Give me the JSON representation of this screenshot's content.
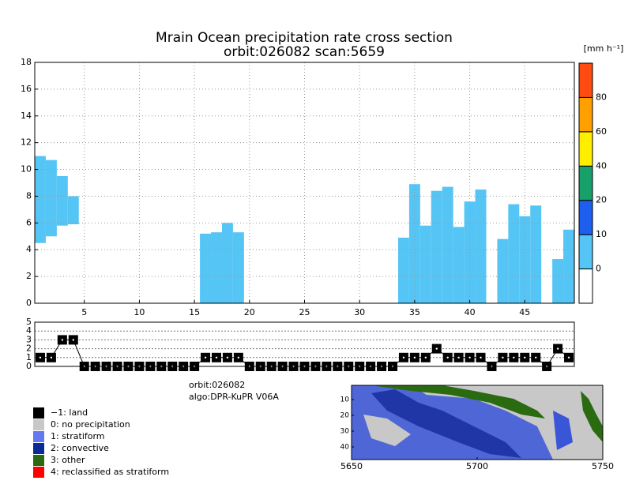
{
  "chart_data": [
    {
      "type": "cross_section",
      "title": "Mrain Ocean precipitation rate cross section",
      "subtitle": "orbit:026082    scan:5659",
      "x": [
        1,
        2,
        3,
        4,
        5,
        6,
        7,
        8,
        9,
        10,
        11,
        12,
        13,
        14,
        15,
        16,
        17,
        18,
        19,
        20,
        21,
        22,
        23,
        24,
        25,
        26,
        27,
        28,
        29,
        30,
        31,
        32,
        33,
        34,
        35,
        36,
        37,
        38,
        39,
        40,
        41,
        42,
        43,
        44,
        45,
        46,
        47,
        48,
        49
      ],
      "bottom": [
        4.5,
        5.0,
        5.8,
        5.9,
        null,
        null,
        null,
        null,
        null,
        null,
        null,
        null,
        null,
        null,
        null,
        0,
        0,
        0,
        0,
        null,
        null,
        null,
        null,
        null,
        null,
        null,
        null,
        null,
        null,
        null,
        null,
        null,
        null,
        0,
        0,
        0,
        0,
        0,
        0,
        0,
        0,
        null,
        0,
        0,
        0,
        0,
        null,
        0,
        0
      ],
      "top": [
        11.0,
        10.7,
        9.5,
        8.0,
        null,
        null,
        null,
        null,
        null,
        null,
        null,
        null,
        null,
        null,
        null,
        5.2,
        5.3,
        6.0,
        5.3,
        null,
        null,
        null,
        null,
        null,
        null,
        null,
        null,
        null,
        null,
        null,
        null,
        null,
        null,
        4.9,
        8.9,
        5.8,
        8.4,
        8.7,
        5.7,
        7.6,
        8.5,
        null,
        4.8,
        7.4,
        6.5,
        7.3,
        null,
        3.3,
        5.5
      ],
      "color": "#55c5f5",
      "xlim": [
        0.5,
        49.5
      ],
      "ylim": [
        0,
        18
      ],
      "xticks": [
        5,
        10,
        15,
        20,
        25,
        30,
        35,
        40,
        45
      ],
      "yticks": [
        0,
        2,
        4,
        6,
        8,
        10,
        12,
        14,
        16,
        18
      ],
      "grid": true
    },
    {
      "type": "line",
      "x": [
        1,
        2,
        3,
        4,
        5,
        6,
        7,
        8,
        9,
        10,
        11,
        12,
        13,
        14,
        15,
        16,
        17,
        18,
        19,
        20,
        21,
        22,
        23,
        24,
        25,
        26,
        27,
        28,
        29,
        30,
        31,
        32,
        33,
        34,
        35,
        36,
        37,
        38,
        39,
        40,
        41,
        42,
        43,
        44,
        45,
        46,
        47,
        48,
        49
      ],
      "values": [
        1,
        1,
        3,
        3,
        0,
        0,
        0,
        0,
        0,
        0,
        0,
        0,
        0,
        0,
        0,
        1,
        1,
        1,
        1,
        0,
        0,
        0,
        0,
        0,
        0,
        0,
        0,
        0,
        0,
        0,
        0,
        0,
        0,
        1,
        1,
        1,
        2,
        1,
        1,
        1,
        1,
        0,
        1,
        1,
        1,
        1,
        0,
        2,
        1
      ],
      "color": "#000000",
      "xlim": [
        0.5,
        49.5
      ],
      "ylim": [
        0,
        5
      ],
      "yticks": [
        0,
        1,
        2,
        3,
        4,
        5
      ],
      "grid": true
    },
    {
      "type": "colorbar",
      "unit": "[mm h⁻¹]",
      "ticks": [
        0,
        10,
        20,
        40,
        60,
        80
      ],
      "colors": [
        "#ffffff",
        "#55c5f5",
        "#1e5ff0",
        "#17a06a",
        "#ffee00",
        "#ffa000",
        "#ff4a10"
      ]
    },
    {
      "type": "map",
      "xlim": [
        5650,
        5750
      ],
      "ylim": [
        1,
        48
      ],
      "xticks": [
        5650,
        5700,
        5750
      ],
      "yticks": [
        10,
        20,
        30,
        40
      ]
    }
  ],
  "info": [
    "orbit:026082",
    "algo:DPR-KuPR V06A"
  ],
  "legend": [
    {
      "label": "−1: land",
      "color": "#000000"
    },
    {
      "label": "0: no precipitation",
      "color": "#c8c8c8"
    },
    {
      "label": "1: stratiform",
      "color": "#6478f0"
    },
    {
      "label": "2: convective",
      "color": "#0a2a9a"
    },
    {
      "label": "3: other",
      "color": "#2a6a10"
    },
    {
      "label": "4: reclassified as stratiform",
      "color": "#ff0000"
    }
  ]
}
